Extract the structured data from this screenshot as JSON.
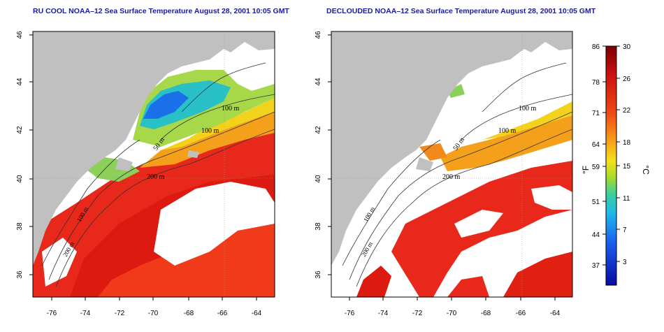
{
  "panels": [
    {
      "title": "RU COOL NOAA–12 Sea Surface Temperature August 28, 2001 10:05 GMT",
      "x_ticks": [
        "-76",
        "-74",
        "-72",
        "-70",
        "-68",
        "-66",
        "-64"
      ],
      "y_ticks": [
        "46",
        "44",
        "42",
        "40",
        "38",
        "36"
      ],
      "contour_labels": [
        "100 m",
        "100 m",
        "50 m",
        "200 m",
        "100 m",
        "200 m"
      ]
    },
    {
      "title": "DECLOUDED NOAA–12 Sea Surface Temperature August 28, 2001 10:05 GMT",
      "x_ticks": [
        "-76",
        "-74",
        "-72",
        "-70",
        "-68",
        "-66",
        "-64"
      ],
      "y_ticks": [
        "46",
        "44",
        "42",
        "40",
        "38",
        "36"
      ],
      "contour_labels": [
        "100 m",
        "100 m",
        "50 m",
        "200 m",
        "100 m",
        "200 m"
      ]
    }
  ],
  "colorbar": {
    "f_ticks": [
      "86",
      "78",
      "71",
      "64",
      "59",
      "51",
      "44",
      "37"
    ],
    "c_ticks": [
      "30",
      "26",
      "22",
      "18",
      "15",
      "11",
      "7",
      "3"
    ],
    "f_label": "°F",
    "c_label": "°C",
    "colors": [
      "#8b0000",
      "#dd1a10",
      "#f06a1a",
      "#f7c81a",
      "#c6dc1a",
      "#3ac8b8",
      "#1a7cf0",
      "#0a10a8"
    ]
  }
}
